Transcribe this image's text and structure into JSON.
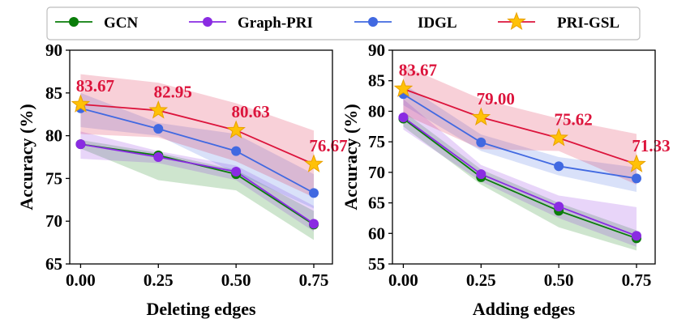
{
  "legend": {
    "items": [
      {
        "label": "GCN",
        "color": "#0a7d0a",
        "marker": "circle"
      },
      {
        "label": "Graph-PRI",
        "color": "#8a2be2",
        "marker": "circle"
      },
      {
        "label": "IDGL",
        "color": "#4169e1",
        "marker": "circle"
      },
      {
        "label": "PRI-GSL",
        "color": "#dc143c",
        "marker": "star",
        "marker_fill": "#ffc107"
      }
    ]
  },
  "chart_data": [
    {
      "type": "line",
      "title": "",
      "xlabel": "Deleting edges",
      "ylabel": "Accuracy (%)",
      "x": [
        0.0,
        0.25,
        0.5,
        0.75
      ],
      "xticks": [
        "0.00",
        "0.25",
        "0.50",
        "0.75"
      ],
      "xlim": [
        -0.035,
        0.81
      ],
      "ylim": [
        65,
        90
      ],
      "yticks": [
        "65",
        "70",
        "75",
        "80",
        "85",
        "90"
      ],
      "yticks_values": [
        65,
        70,
        75,
        80,
        85,
        90
      ],
      "series": [
        {
          "name": "GCN",
          "color": "#0a7d0a",
          "values": [
            79.0,
            77.7,
            75.5,
            69.6
          ],
          "lower": [
            78.5,
            74.8,
            73.6,
            67.8
          ],
          "upper": [
            79.5,
            78.0,
            76.0,
            71.2
          ]
        },
        {
          "name": "Graph-PRI",
          "color": "#8a2be2",
          "values": [
            79.0,
            77.5,
            75.8,
            69.7
          ],
          "lower": [
            77.3,
            76.8,
            74.8,
            68.8
          ],
          "upper": [
            80.5,
            78.2,
            76.5,
            71.8
          ]
        },
        {
          "name": "IDGL",
          "color": "#4169e1",
          "values": [
            83.2,
            80.8,
            78.2,
            73.3
          ],
          "lower": [
            81.0,
            80.0,
            75.6,
            71.5
          ],
          "upper": [
            85.0,
            81.5,
            80.2,
            75.5
          ]
        },
        {
          "name": "PRI-GSL",
          "color": "#dc143c",
          "marker_fill": "#ffc107",
          "values": [
            83.67,
            82.95,
            80.63,
            76.67
          ],
          "lower": [
            80.2,
            79.8,
            77.0,
            72.8
          ],
          "upper": [
            87.2,
            86.2,
            83.8,
            80.6
          ]
        }
      ],
      "annotations": [
        "83.67",
        "82.95",
        "80.63",
        "76.67"
      ]
    },
    {
      "type": "line",
      "title": "",
      "xlabel": "Adding edges",
      "ylabel": "Accuracy (%)",
      "x": [
        0.0,
        0.25,
        0.5,
        0.75
      ],
      "xticks": [
        "0.00",
        "0.25",
        "0.50",
        "0.75"
      ],
      "xlim": [
        -0.035,
        0.81
      ],
      "ylim": [
        55,
        90
      ],
      "yticks": [
        "55",
        "60",
        "65",
        "70",
        "75",
        "80",
        "85",
        "90"
      ],
      "yticks_values": [
        55,
        60,
        65,
        70,
        75,
        80,
        85,
        90
      ],
      "series": [
        {
          "name": "GCN",
          "color": "#0a7d0a",
          "values": [
            78.8,
            69.2,
            63.7,
            59.2
          ],
          "lower": [
            77.5,
            68.0,
            61.0,
            57.2
          ],
          "upper": [
            80.0,
            70.5,
            65.0,
            60.5
          ]
        },
        {
          "name": "Graph-PRI",
          "color": "#8a2be2",
          "values": [
            79.0,
            69.7,
            64.4,
            59.6
          ],
          "lower": [
            77.0,
            68.5,
            62.5,
            57.8
          ],
          "upper": [
            82.0,
            71.2,
            66.2,
            64.3
          ]
        },
        {
          "name": "IDGL",
          "color": "#4169e1",
          "values": [
            82.8,
            74.9,
            71.0,
            69.0
          ],
          "lower": [
            81.0,
            73.5,
            69.5,
            66.8
          ],
          "upper": [
            84.5,
            76.2,
            72.5,
            70.8
          ]
        },
        {
          "name": "PRI-GSL",
          "color": "#dc143c",
          "marker_fill": "#ffc107",
          "values": [
            83.67,
            79.0,
            75.62,
            71.33
          ],
          "lower": [
            79.5,
            73.8,
            73.5,
            68.0
          ],
          "upper": [
            87.5,
            82.0,
            78.8,
            76.3
          ]
        }
      ],
      "annotations": [
        "83.67",
        "79.00",
        "75.62",
        "71.33"
      ]
    }
  ]
}
